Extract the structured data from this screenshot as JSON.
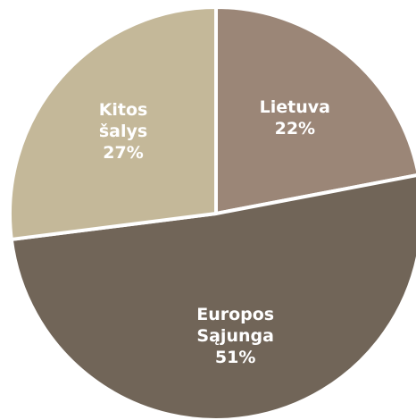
{
  "chart_data": {
    "type": "pie",
    "categories": [
      "Lietuva",
      "Europos Sąjunga",
      "Kitos šalys"
    ],
    "values": [
      22,
      51,
      27
    ],
    "value_labels": [
      "22%",
      "51%",
      "27%"
    ],
    "colors": [
      "#9b8677",
      "#716558",
      "#c4b899"
    ],
    "start_angle": 0,
    "direction": "clockwise"
  }
}
